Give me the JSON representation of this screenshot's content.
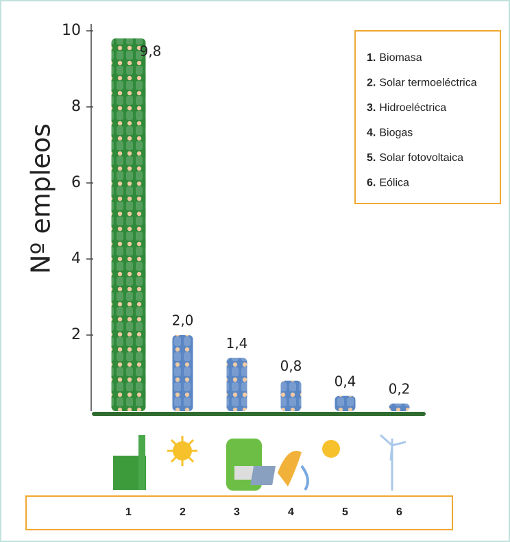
{
  "chart_data": {
    "type": "bar",
    "y_label": "Nº empleos",
    "categories": [
      "1",
      "2",
      "3",
      "4",
      "5",
      "6"
    ],
    "values": [
      9.8,
      2.0,
      1.4,
      0.8,
      0.4,
      0.2
    ],
    "value_labels": [
      "9,8",
      "2,0",
      "1,4",
      "0,8",
      "0,4",
      "0,2"
    ],
    "colors": [
      "#2f8a3a",
      "#5a86c4",
      "#5a86c4",
      "#5a86c4",
      "#5a86c4",
      "#5a86c4"
    ],
    "ylim": [
      0,
      10
    ],
    "yticks": [
      2,
      4,
      6,
      8,
      10
    ],
    "grid": false,
    "legend_position": "upper right",
    "legend": [
      {
        "key": "1.",
        "text": "Biomasa"
      },
      {
        "key": "2.",
        "text": "Solar termoeléctrica"
      },
      {
        "key": "3.",
        "text": "Hidroeléctrica"
      },
      {
        "key": "4.",
        "text": "Biogas"
      },
      {
        "key": "5.",
        "text": "Solar fotovoltaica"
      },
      {
        "key": "6.",
        "text": "Eólica"
      }
    ]
  }
}
